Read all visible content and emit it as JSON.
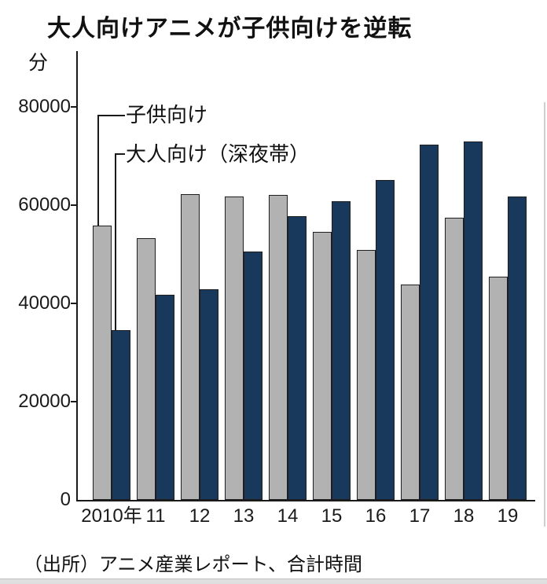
{
  "title": "大人向けアニメが子供向けを逆転",
  "source": "（出所）アニメ産業レポート、合計時間",
  "chart_data": {
    "type": "bar",
    "title": "大人向けアニメが子供向けを逆転",
    "unit_label": "分",
    "categories": [
      "2010年",
      "11",
      "12",
      "13",
      "14",
      "15",
      "16",
      "17",
      "18",
      "19"
    ],
    "series": [
      {
        "name": "子供向け",
        "color": "#b2b2b2",
        "values": [
          55800,
          53300,
          62200,
          61800,
          62100,
          54600,
          50900,
          43800,
          57400,
          45400
        ]
      },
      {
        "name": "大人向け（深夜帯）",
        "color": "#18395c",
        "values": [
          34600,
          41700,
          42800,
          50500,
          57800,
          60800,
          65100,
          72300,
          73000,
          61700
        ]
      }
    ],
    "ylim": [
      0,
      80000
    ],
    "yticks": [
      0,
      20000,
      40000,
      60000,
      80000
    ],
    "grid": false,
    "legend_position": "callout-labels-top-left",
    "xlabel": "",
    "ylabel": "分"
  },
  "colors": {
    "axis": "#1a1a1a",
    "children_bar": "#b2b2b2",
    "adult_bar": "#18395c",
    "background": "#ffffff"
  }
}
